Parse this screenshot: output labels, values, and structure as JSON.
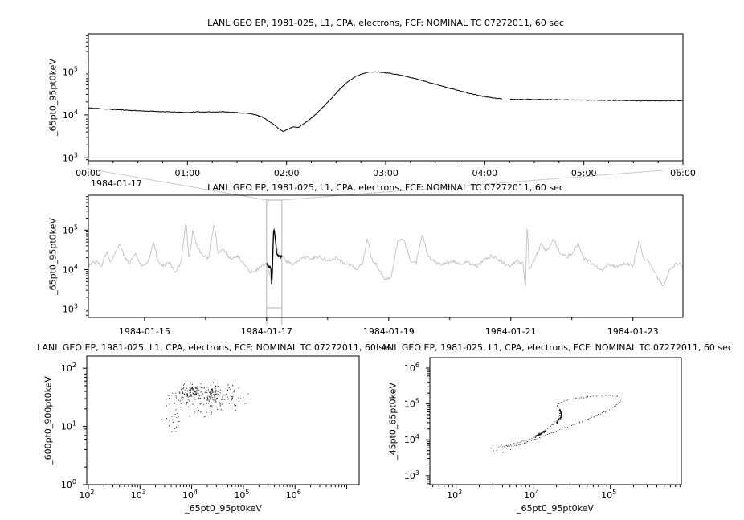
{
  "app": {
    "background": "#ffffff"
  },
  "colors": {
    "detail_line": "#000000",
    "context_line": "#c6c6c6",
    "highlight_line": "#000000",
    "selection_box": "#b0b0b0",
    "connector": "#c9c9c9",
    "axis": "#000000",
    "scatter_dot": "#111111"
  },
  "chart_data": [
    {
      "id": "detail",
      "type": "line",
      "title": "LANL GEO EP, 1981-025, L1, CPA, electrons, FCF: NOMINAL TC 07272011, 60 sec",
      "ylabel": "_65pt0_95pt0keV",
      "xlabel": "",
      "x_tick_labels": [
        "00:00",
        "01:00",
        "02:00",
        "03:00",
        "04:00",
        "05:00",
        "06:00"
      ],
      "x_date_label": "1984-01-17",
      "y_tick_exponents": [
        3,
        4,
        5
      ],
      "ylim_log10": [
        2.93,
        5.89
      ],
      "xlim_hours": [
        0,
        6
      ],
      "grid": false,
      "series": {
        "name": "_65pt0_95pt0keV",
        "hours": [
          0,
          0.2,
          0.4,
          0.6,
          0.8,
          1.0,
          1.1,
          1.2,
          1.35,
          1.5,
          1.65,
          1.75,
          1.85,
          1.92,
          1.97,
          2.02,
          2.07,
          2.12,
          2.2,
          2.3,
          2.4,
          2.5,
          2.6,
          2.7,
          2.8,
          2.88,
          2.95,
          3.05,
          3.15,
          3.3,
          3.45,
          3.6,
          3.75,
          3.9,
          4.0,
          4.1,
          4.18,
          4.25,
          4.3,
          4.5,
          4.75,
          5.0,
          5.25,
          5.5,
          5.75,
          6.0
        ],
        "values": [
          14500,
          13600,
          12800,
          12200,
          11800,
          11400,
          11800,
          11600,
          11900,
          11300,
          10600,
          9000,
          6500,
          4800,
          4100,
          4700,
          5300,
          5100,
          6800,
          10500,
          18000,
          32000,
          55000,
          80000,
          96000,
          101000,
          99000,
          93000,
          84000,
          70000,
          56000,
          45000,
          36000,
          29500,
          26500,
          24500,
          23500,
          23200,
          23000,
          22800,
          22500,
          22000,
          21800,
          21300,
          21100,
          21500
        ],
        "gaps_hours": [
          [
            4.18,
            4.25
          ]
        ]
      }
    },
    {
      "id": "context",
      "type": "line",
      "title": "LANL GEO EP, 1981-025, L1, CPA, electrons, FCF: NOMINAL TC 07272011, 60 sec",
      "ylabel": "_65pt0_95pt0keV",
      "xlabel": "",
      "x_tick_labels": [
        "1984-01-15",
        "1984-01-17",
        "1984-01-19",
        "1984-01-21",
        "1984-01-23"
      ],
      "x_tick_days": [
        15,
        17,
        19,
        21,
        23
      ],
      "x_minor_days": [
        14,
        16,
        18,
        20,
        22,
        24
      ],
      "y_tick_exponents": [
        3,
        4,
        5
      ],
      "ylim_log10": [
        2.79,
        5.88
      ],
      "xlim_days": [
        14.08,
        23.82
      ],
      "highlight_interval_days": [
        17.0,
        17.25
      ],
      "series": {
        "name": "_65pt0_95pt0keV",
        "days": [
          14.08,
          14.2,
          14.3,
          14.38,
          14.45,
          14.52,
          14.6,
          14.68,
          14.75,
          14.85,
          14.95,
          15.05,
          15.15,
          15.22,
          15.3,
          15.4,
          15.5,
          15.6,
          15.68,
          15.73,
          15.79,
          15.86,
          15.95,
          16.05,
          16.14,
          16.2,
          16.3,
          16.42,
          16.52,
          16.62,
          16.72,
          16.82,
          16.92,
          17.0,
          17.05,
          17.08,
          17.12,
          17.17,
          17.25,
          17.32,
          17.42,
          17.52,
          17.62,
          17.72,
          17.85,
          17.95,
          18.05,
          18.15,
          18.25,
          18.38,
          18.48,
          18.58,
          18.65,
          18.72,
          18.82,
          18.95,
          19.05,
          19.15,
          19.25,
          19.35,
          19.45,
          19.55,
          19.65,
          19.75,
          19.85,
          19.95,
          20.05,
          20.15,
          20.3,
          20.45,
          20.6,
          20.7,
          20.8,
          20.9,
          21.0,
          21.1,
          21.2,
          21.24,
          21.27,
          21.3,
          21.4,
          21.5,
          21.6,
          21.7,
          21.8,
          21.9,
          22.0,
          22.1,
          22.2,
          22.3,
          22.4,
          22.5,
          22.6,
          22.7,
          22.8,
          22.9,
          23.0,
          23.1,
          23.17,
          23.28,
          23.4,
          23.5,
          23.6,
          23.7,
          23.82
        ],
        "values": [
          13000,
          16000,
          13000,
          30000,
          15000,
          28000,
          45000,
          20000,
          14000,
          26000,
          12000,
          15000,
          52000,
          16000,
          12000,
          16000,
          9000,
          15000,
          190000,
          16000,
          95000,
          40000,
          22000,
          20000,
          145000,
          26000,
          32000,
          18000,
          22000,
          15000,
          9000,
          9500,
          12500,
          14000,
          8000,
          4200,
          100000,
          32000,
          23000,
          16000,
          14000,
          17000,
          20000,
          19000,
          21000,
          18000,
          17000,
          20000,
          15000,
          13000,
          9000,
          16000,
          60000,
          18000,
          12000,
          5500,
          7000,
          55000,
          58000,
          18000,
          15000,
          78000,
          20000,
          16000,
          14000,
          15000,
          16000,
          13500,
          15000,
          12000,
          20000,
          22000,
          18000,
          14000,
          13000,
          17000,
          14000,
          3500,
          180000,
          9000,
          20000,
          45000,
          28000,
          60000,
          28000,
          21000,
          24000,
          45000,
          19000,
          15000,
          12000,
          9500,
          14000,
          12000,
          13500,
          14000,
          12000,
          55000,
          20000,
          15000,
          6500,
          3800,
          9500,
          14000,
          13000
        ]
      }
    },
    {
      "id": "scatter_left",
      "type": "scatter",
      "title": "LANL GEO EP, 1981-025, L1, CPA, electrons, FCF: NOMINAL TC 07272011, 60 sec",
      "ylabel": "_600pt0_900pt0keV",
      "xlabel": "_65pt0_95pt0keV",
      "x_tick_exponents": [
        2,
        3,
        4,
        5,
        6
      ],
      "y_tick_exponents": [
        0,
        1,
        2
      ],
      "xlim_log10": [
        1.97,
        7.24
      ],
      "ylim_log10": [
        0,
        2.21
      ],
      "clusters": [
        {
          "cx": 4.02,
          "cy": 1.62,
          "sx": 0.1,
          "sy": 0.06,
          "n": 90
        },
        {
          "cx": 4.4,
          "cy": 1.55,
          "sx": 0.07,
          "sy": 0.07,
          "n": 80
        },
        {
          "cx": 3.82,
          "cy": 1.5,
          "sx": 0.15,
          "sy": 0.1,
          "n": 45
        },
        {
          "cx": 4.7,
          "cy": 1.52,
          "sx": 0.2,
          "sy": 0.1,
          "n": 50
        },
        {
          "cx": 3.62,
          "cy": 1.18,
          "sx": 0.12,
          "sy": 0.16,
          "n": 22
        },
        {
          "cx": 4.15,
          "cy": 1.35,
          "sx": 0.28,
          "sy": 0.1,
          "n": 35
        }
      ]
    },
    {
      "id": "scatter_right",
      "type": "scatter",
      "title": "LANL GEO EP, 1981-025, L1, CPA, electrons, FCF: NOMINAL TC 07272011, 60 sec",
      "ylabel": "_45pt0_65pt0keV",
      "xlabel": "_65pt0_95pt0keV",
      "x_tick_exponents": [
        3,
        4,
        5
      ],
      "y_tick_exponents": [
        3,
        4,
        5,
        6
      ],
      "xlim_log10": [
        2.66,
        5.92
      ],
      "ylim_log10": [
        2.75,
        6.29
      ],
      "loop_path_log10": [
        [
          3.55,
          3.8
        ],
        [
          3.65,
          3.84
        ],
        [
          3.75,
          3.9
        ],
        [
          3.85,
          3.96
        ],
        [
          3.95,
          4.04
        ],
        [
          4.05,
          4.13
        ],
        [
          4.12,
          4.22
        ],
        [
          4.18,
          4.32
        ],
        [
          4.25,
          4.45
        ],
        [
          4.31,
          4.6
        ],
        [
          4.345,
          4.75
        ],
        [
          4.34,
          4.87
        ],
        [
          4.31,
          4.96
        ],
        [
          4.33,
          5.03
        ],
        [
          4.42,
          5.1
        ],
        [
          4.55,
          5.16
        ],
        [
          4.7,
          5.21
        ],
        [
          4.85,
          5.245
        ],
        [
          4.98,
          5.25
        ],
        [
          5.08,
          5.22
        ],
        [
          5.13,
          5.15
        ],
        [
          5.12,
          5.05
        ],
        [
          5.05,
          4.93
        ],
        [
          4.93,
          4.8
        ],
        [
          4.78,
          4.66
        ],
        [
          4.6,
          4.5
        ],
        [
          4.42,
          4.35
        ],
        [
          4.25,
          4.21
        ],
        [
          4.08,
          4.07
        ],
        [
          3.92,
          3.95
        ],
        [
          3.78,
          3.86
        ],
        [
          3.66,
          3.81
        ]
      ],
      "dense_arcs_log10": [
        [
          [
            4.3,
            4.5
          ],
          [
            4.34,
            4.62
          ],
          [
            4.36,
            4.74
          ],
          [
            4.33,
            4.85
          ]
        ],
        [
          [
            4.02,
            4.1
          ],
          [
            4.08,
            4.18
          ],
          [
            4.14,
            4.25
          ],
          [
            4.1,
            4.2
          ]
        ]
      ],
      "stray_points_log10": [
        [
          3.52,
          3.72
        ],
        [
          3.6,
          3.66
        ],
        [
          3.45,
          3.78
        ],
        [
          3.7,
          3.74
        ],
        [
          3.58,
          3.86
        ],
        [
          3.48,
          3.7
        ]
      ]
    }
  ]
}
